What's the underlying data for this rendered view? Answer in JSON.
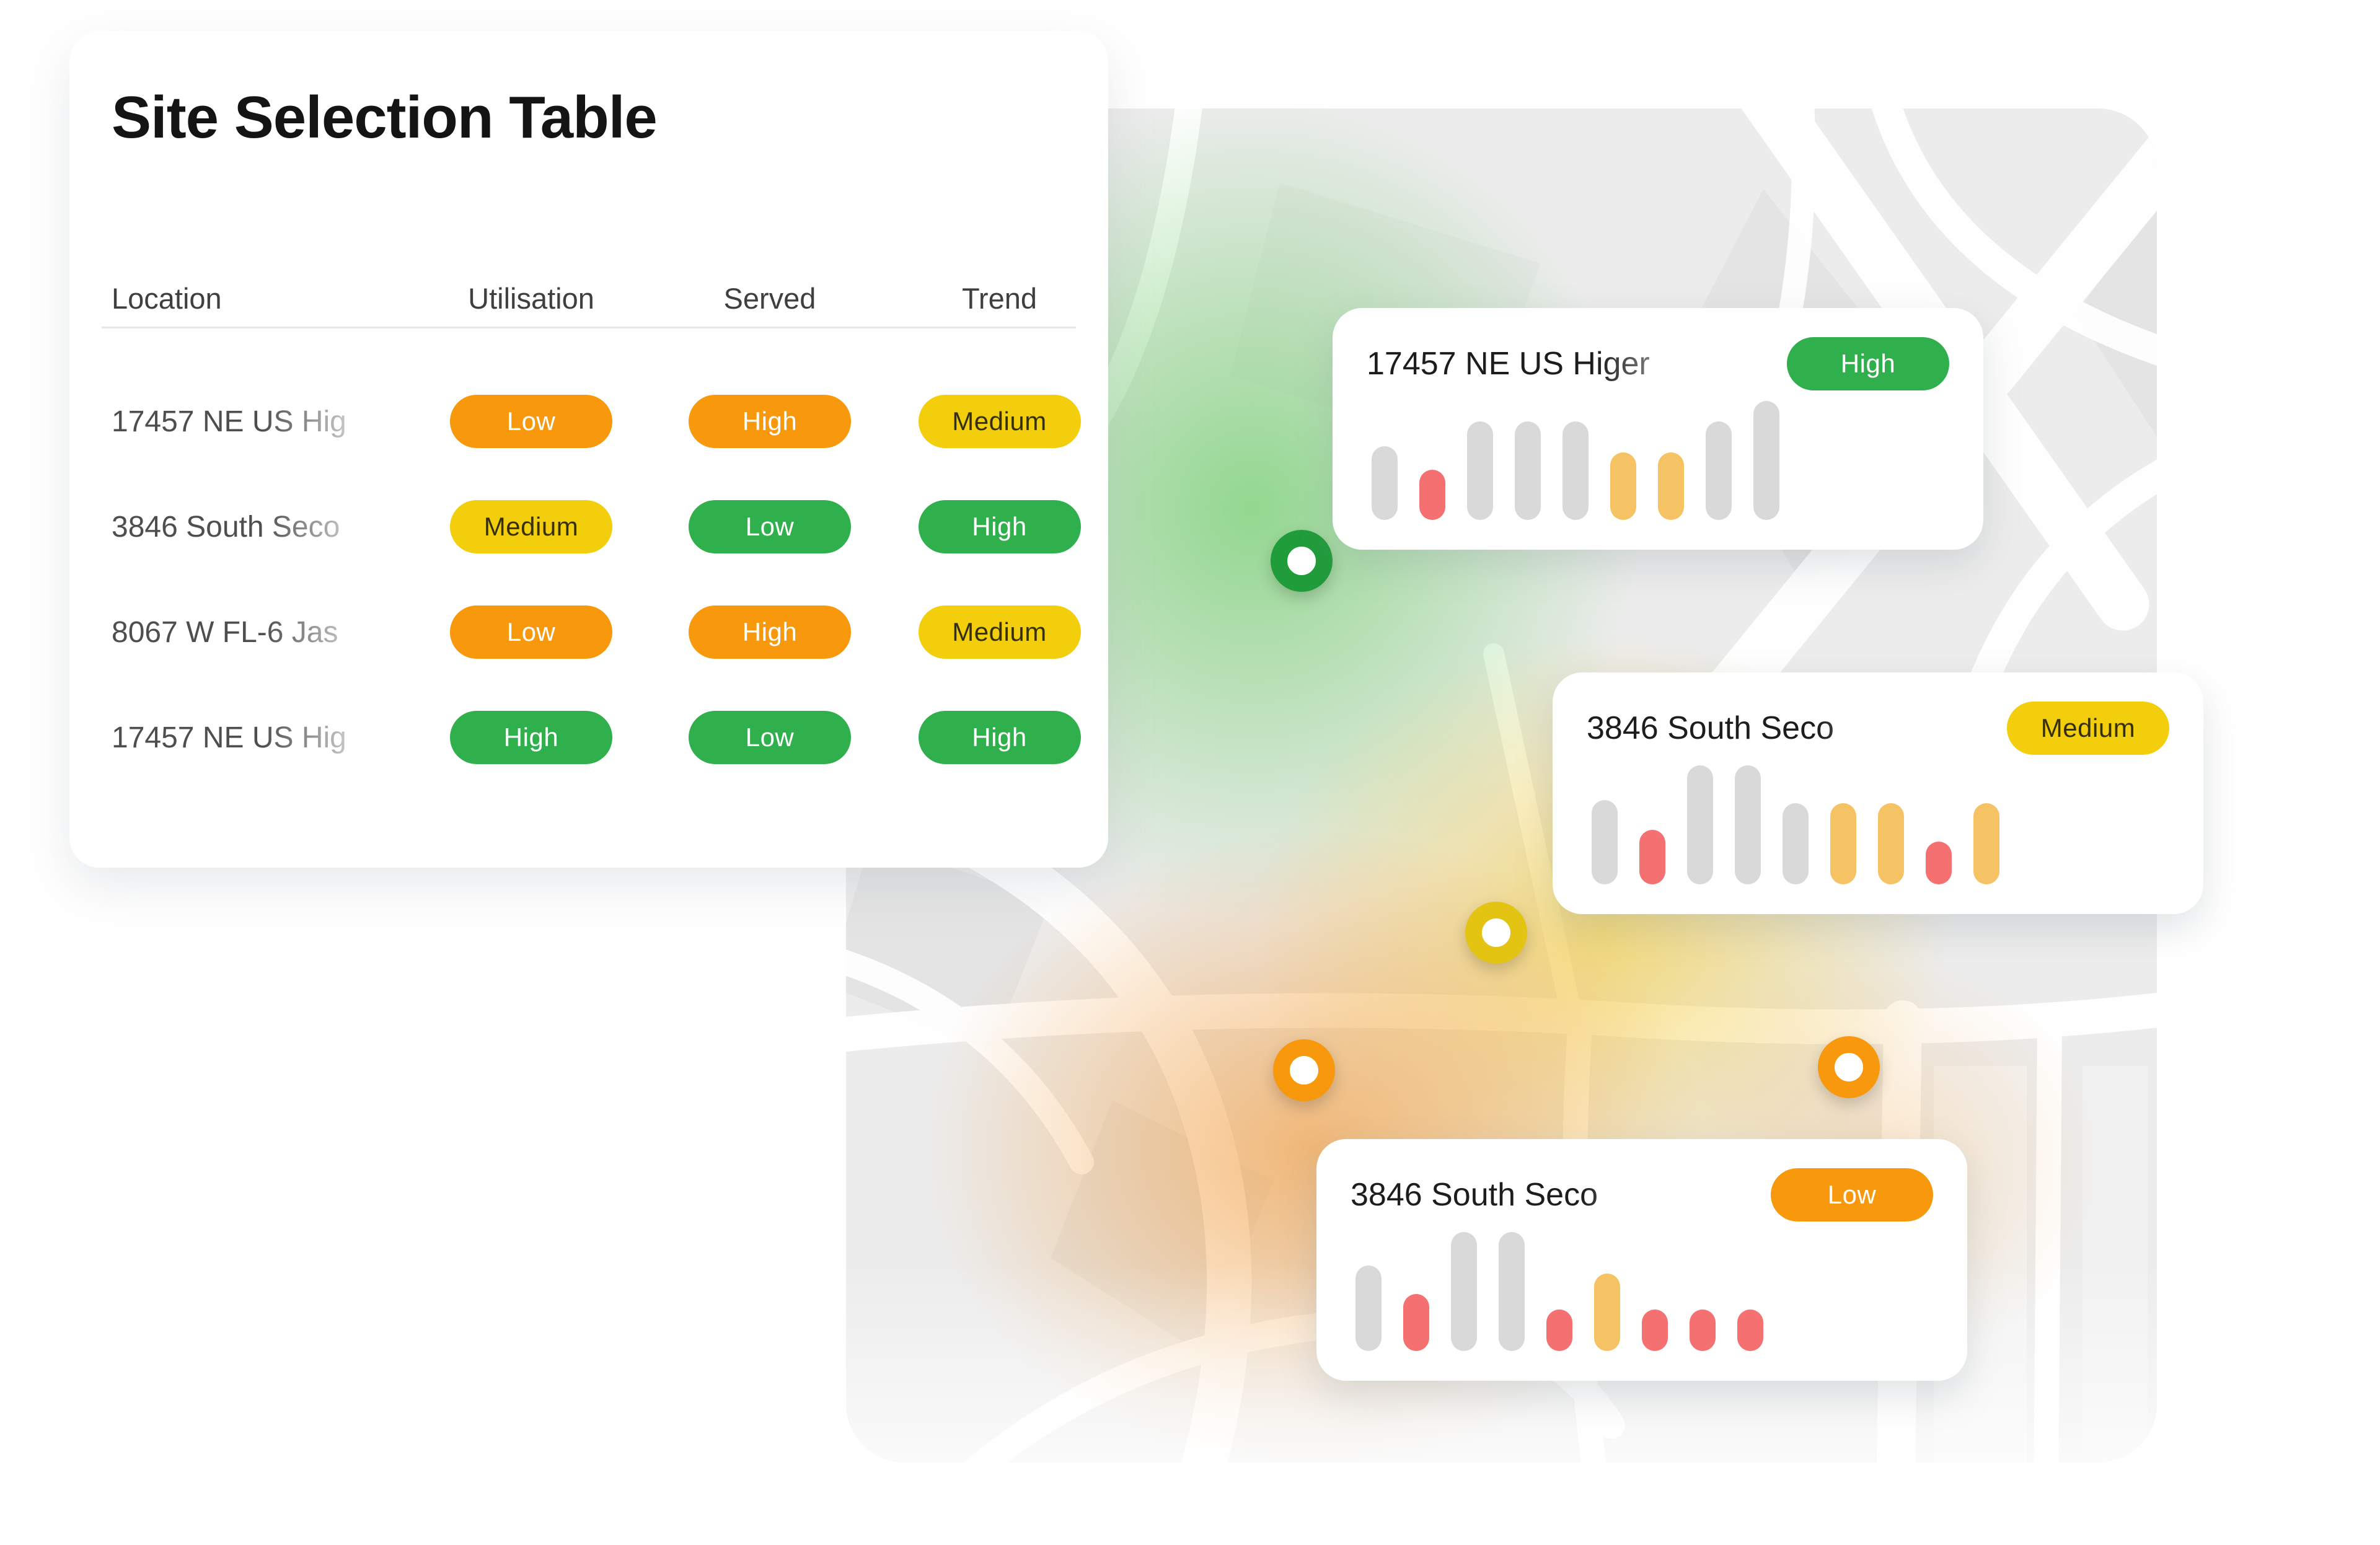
{
  "colors": {
    "badge_orange": "#F8980C",
    "badge_yellow": "#F2CE0D",
    "badge_green": "#30B04C",
    "bar_gray": "#D9D9D9",
    "bar_red": "#F57070",
    "bar_amber": "#F6C364",
    "pin_green": "#219C3B",
    "pin_yellow": "#E3C413",
    "pin_orange": "#F8980C",
    "map_base": "#ECECEC"
  },
  "table_card": {
    "title": "Site Selection Table",
    "columns": [
      "Location",
      "Utilisation",
      "Served",
      "Trend"
    ],
    "rows": [
      {
        "location": "17457 NE US Hig",
        "utilisation": {
          "label": "Low",
          "variant": "orange"
        },
        "served": {
          "label": "High",
          "variant": "orange"
        },
        "trend": {
          "label": "Medium",
          "variant": "yellow"
        }
      },
      {
        "location": "3846 South Seco",
        "utilisation": {
          "label": "Medium",
          "variant": "yellow"
        },
        "served": {
          "label": "Low",
          "variant": "green"
        },
        "trend": {
          "label": "High",
          "variant": "green"
        }
      },
      {
        "location": "8067 W FL-6 Jas",
        "utilisation": {
          "label": "Low",
          "variant": "orange"
        },
        "served": {
          "label": "High",
          "variant": "orange"
        },
        "trend": {
          "label": "Medium",
          "variant": "yellow"
        }
      },
      {
        "location": "17457 NE US Hig",
        "utilisation": {
          "label": "High",
          "variant": "green"
        },
        "served": {
          "label": "Low",
          "variant": "green"
        },
        "trend": {
          "label": "High",
          "variant": "green"
        }
      }
    ]
  },
  "map": {
    "pins": [
      {
        "name": "green",
        "color": "#219C3B"
      },
      {
        "name": "yellow",
        "color": "#E3C413"
      },
      {
        "name": "orange-left",
        "color": "#F8980C"
      },
      {
        "name": "orange-right",
        "color": "#F8980C"
      }
    ],
    "cards": [
      {
        "title": "17457 NE US Higer",
        "badge": {
          "label": "High",
          "variant": "green"
        },
        "bars": [
          {
            "height": 62,
            "color": "gray"
          },
          {
            "height": 42,
            "color": "red"
          },
          {
            "height": 83,
            "color": "gray"
          },
          {
            "height": 83,
            "color": "gray"
          },
          {
            "height": 83,
            "color": "gray"
          },
          {
            "height": 57,
            "color": "amber"
          },
          {
            "height": 57,
            "color": "amber"
          },
          {
            "height": 83,
            "color": "gray"
          },
          {
            "height": 100,
            "color": "gray"
          }
        ]
      },
      {
        "title": "3846 South Seco",
        "badge": {
          "label": "Medium",
          "variant": "yellow"
        },
        "bars": [
          {
            "height": 71,
            "color": "gray"
          },
          {
            "height": 46,
            "color": "red"
          },
          {
            "height": 100,
            "color": "gray"
          },
          {
            "height": 100,
            "color": "gray"
          },
          {
            "height": 68,
            "color": "gray"
          },
          {
            "height": 68,
            "color": "amber"
          },
          {
            "height": 68,
            "color": "amber"
          },
          {
            "height": 36,
            "color": "red"
          },
          {
            "height": 68,
            "color": "amber"
          }
        ]
      },
      {
        "title": "3846 South Seco",
        "badge": {
          "label": "Low",
          "variant": "orange"
        },
        "bars": [
          {
            "height": 72,
            "color": "gray"
          },
          {
            "height": 48,
            "color": "red"
          },
          {
            "height": 100,
            "color": "gray"
          },
          {
            "height": 100,
            "color": "gray"
          },
          {
            "height": 35,
            "color": "red"
          },
          {
            "height": 65,
            "color": "amber"
          },
          {
            "height": 35,
            "color": "red"
          },
          {
            "height": 35,
            "color": "red"
          },
          {
            "height": 35,
            "color": "red"
          }
        ]
      }
    ]
  }
}
